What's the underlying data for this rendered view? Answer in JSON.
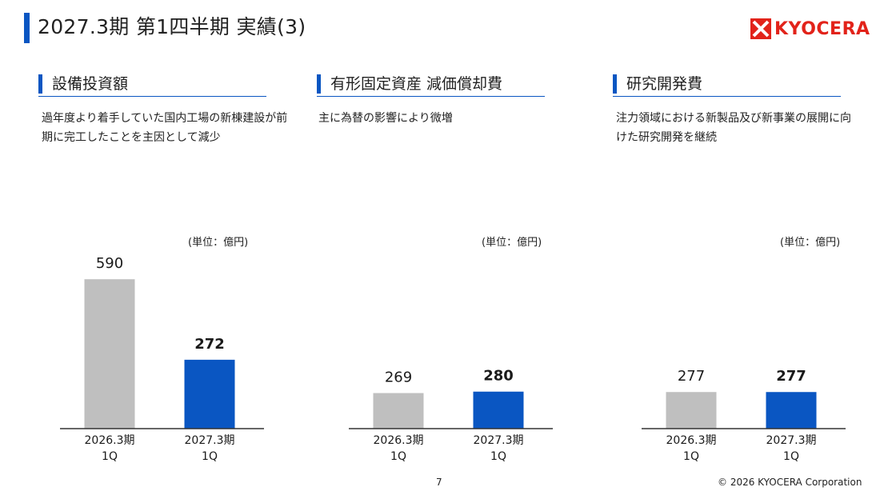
{
  "header": {
    "title": "2027.3期 第1四半期 実績(3)",
    "logo_text": "KYOCERA",
    "accent_color": "#0a56c2",
    "logo_color": "#e2231a"
  },
  "sections": [
    {
      "title": "設備投資額",
      "description": "過年度より着手していた国内工場の新棟建設が前期に完工したことを主因として減少",
      "unit": "(単位：億円)"
    },
    {
      "title": "有形固定資産 減価償却費",
      "description": "主に為替の影響により微増",
      "unit": "(単位：億円)"
    },
    {
      "title": "研究開発費",
      "description": "注力領域における新製品及び新事業の展開に向けた研究開発を継続",
      "unit": "(単位：億円)"
    }
  ],
  "chart_data": [
    {
      "type": "bar",
      "categories": [
        [
          "2026.3期",
          "1Q"
        ],
        [
          "2027.3期",
          "1Q"
        ]
      ],
      "values": [
        590,
        272
      ],
      "colors": [
        "#bfbfbf",
        "#0a56c2"
      ],
      "bold_labels": [
        false,
        true
      ],
      "ylim": [
        0,
        600
      ]
    },
    {
      "type": "bar",
      "categories": [
        [
          "2026.3期",
          "1Q"
        ],
        [
          "2027.3期",
          "1Q"
        ]
      ],
      "values": [
        269,
        280
      ],
      "colors": [
        "#bfbfbf",
        "#0a56c2"
      ],
      "bold_labels": [
        false,
        true
      ],
      "ylim": [
        0,
        1150
      ]
    },
    {
      "type": "bar",
      "categories": [
        [
          "2026.3期",
          "1Q"
        ],
        [
          "2027.3期",
          "1Q"
        ]
      ],
      "values": [
        277,
        277
      ],
      "colors": [
        "#bfbfbf",
        "#0a56c2"
      ],
      "bold_labels": [
        false,
        true
      ],
      "ylim": [
        0,
        1150
      ]
    }
  ],
  "footer": {
    "page_number": "7",
    "copyright": "© 2026 KYOCERA Corporation"
  }
}
